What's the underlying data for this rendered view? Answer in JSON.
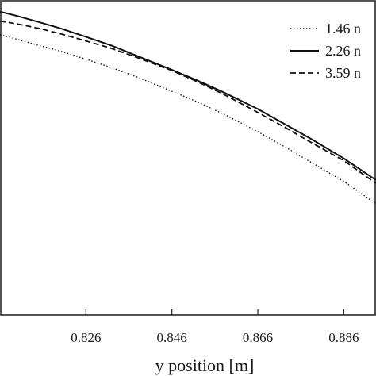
{
  "chart_data": {
    "type": "line",
    "title": "",
    "xlabel": "y position [m]",
    "ylabel": "",
    "xlim": [
      0.806,
      0.8935
    ],
    "ylim": [
      0,
      1
    ],
    "x_ticks": [
      0.826,
      0.846,
      0.866,
      0.886
    ],
    "x_tick_labels": [
      "0.826",
      "0.846",
      "0.866",
      "0.886"
    ],
    "grid": false,
    "legend": "top-right",
    "series": [
      {
        "name": "1.46 n",
        "style": "dotted",
        "x": [
          0.806,
          0.81,
          0.815,
          0.82,
          0.826,
          0.832,
          0.838,
          0.846,
          0.852,
          0.858,
          0.866,
          0.872,
          0.878,
          0.886,
          0.8935
        ],
        "y": [
          0.89,
          0.875,
          0.856,
          0.838,
          0.812,
          0.785,
          0.755,
          0.71,
          0.676,
          0.638,
          0.582,
          0.536,
          0.488,
          0.424,
          0.353
        ]
      },
      {
        "name": "2.26 n",
        "style": "solid",
        "x": [
          0.806,
          0.81,
          0.815,
          0.82,
          0.826,
          0.832,
          0.838,
          0.846,
          0.852,
          0.858,
          0.866,
          0.872,
          0.878,
          0.886,
          0.8935
        ],
        "y": [
          0.963,
          0.949,
          0.93,
          0.91,
          0.883,
          0.855,
          0.822,
          0.778,
          0.744,
          0.707,
          0.654,
          0.608,
          0.562,
          0.497,
          0.428
        ]
      },
      {
        "name": "3.59 n",
        "style": "dashed",
        "x": [
          0.806,
          0.81,
          0.815,
          0.82,
          0.826,
          0.832,
          0.838,
          0.846,
          0.852,
          0.858,
          0.866,
          0.872,
          0.878,
          0.886,
          0.8935
        ],
        "y": [
          0.933,
          0.924,
          0.91,
          0.893,
          0.87,
          0.846,
          0.817,
          0.776,
          0.74,
          0.701,
          0.643,
          0.598,
          0.551,
          0.49,
          0.418
        ]
      }
    ]
  }
}
